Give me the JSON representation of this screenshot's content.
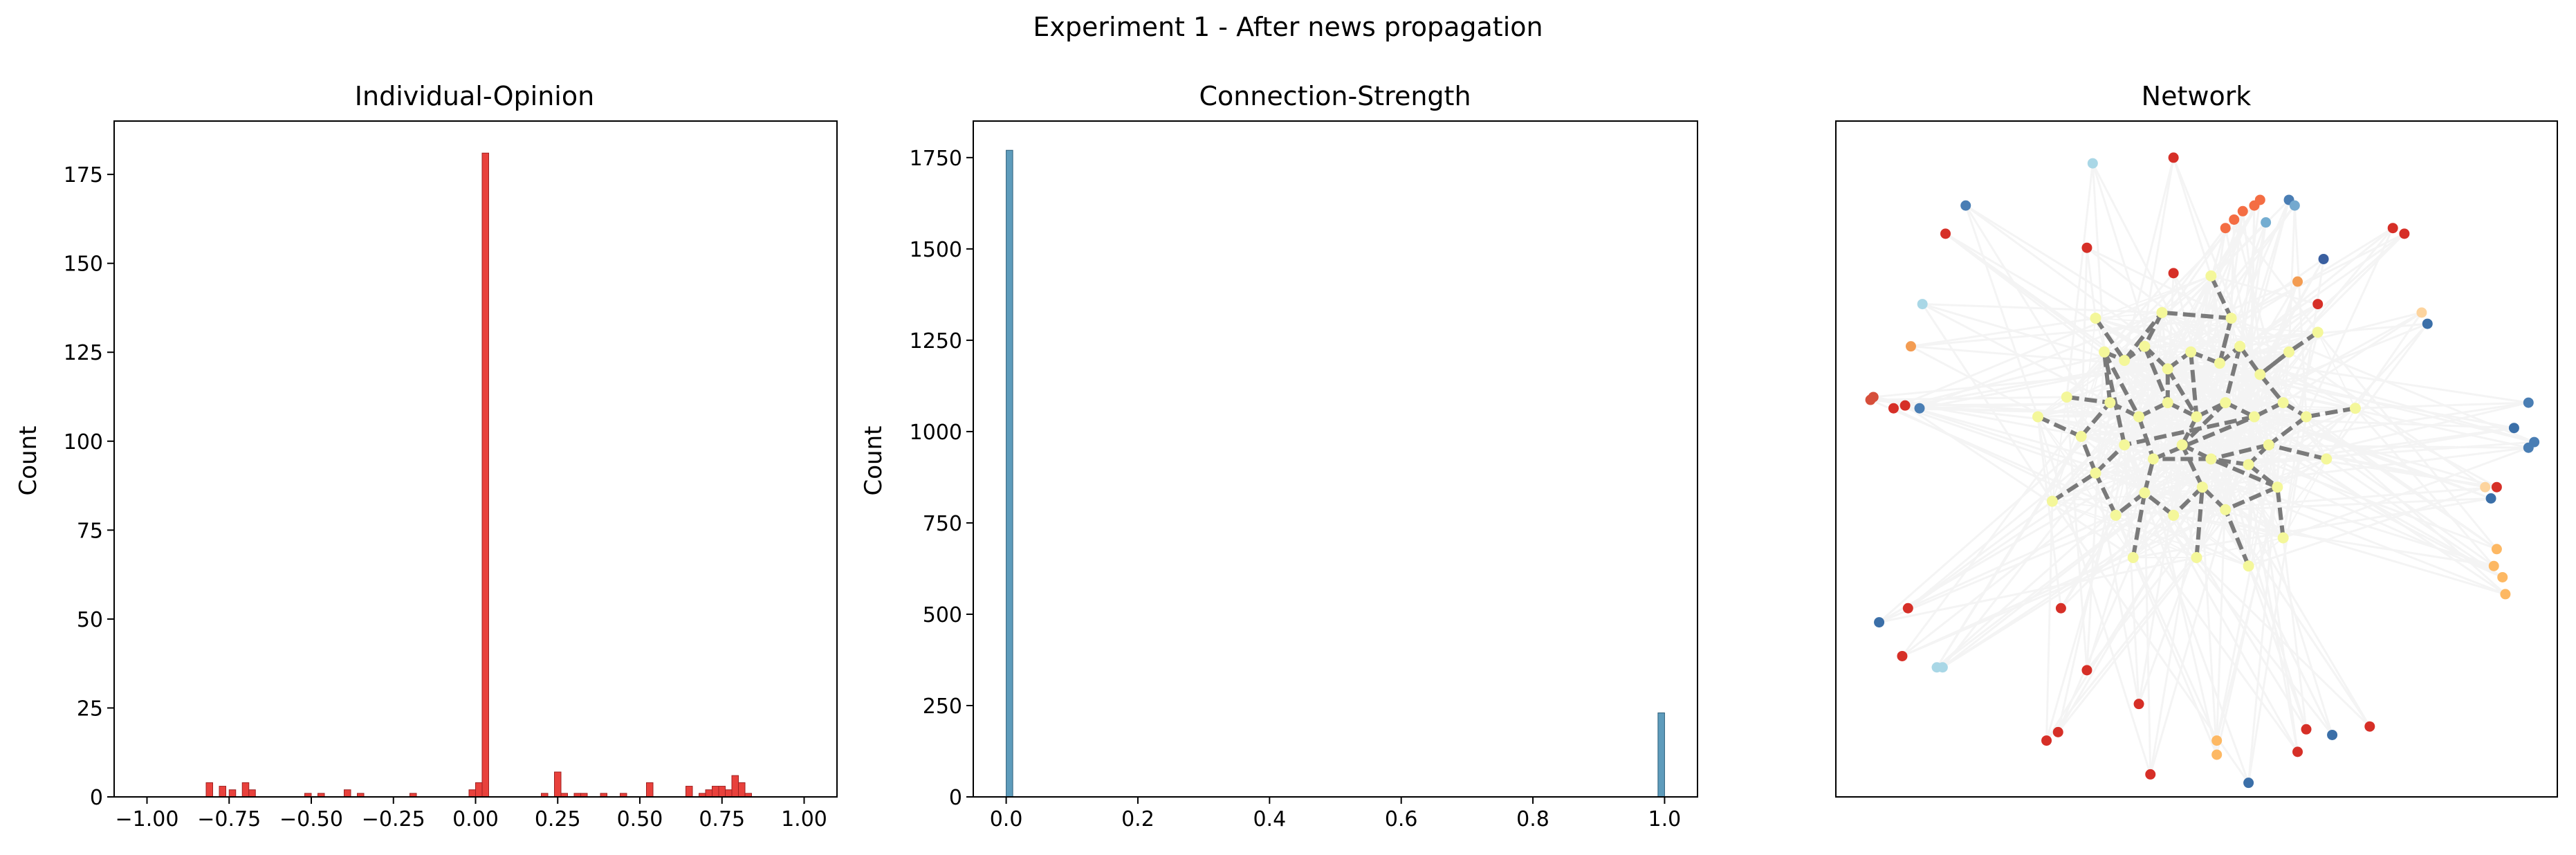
{
  "figure": {
    "title": "Experiment 1 - After news propagation"
  },
  "colors": {
    "opinion_bar": "#e8413c",
    "opinion_bar_edge": "#a02020",
    "strength_bar": "#5e9cbc",
    "strength_bar_edge": "#2d5f7a",
    "network_edge_bg": "#ececec",
    "network_core_edge": "#7a7a7a",
    "network_core_node": "#f4f79a"
  },
  "chart_data": [
    {
      "type": "bar",
      "title": "Individual-Opinion",
      "xlabel": "",
      "ylabel": "Count",
      "xlim": [
        -1.1,
        1.1
      ],
      "ylim": [
        0,
        190
      ],
      "bin_width": 0.02,
      "xticks": [
        -1.0,
        -0.75,
        -0.5,
        -0.25,
        0.0,
        0.25,
        0.5,
        0.75,
        1.0
      ],
      "xtick_labels": [
        "−1.00",
        "−0.75",
        "−0.50",
        "−0.25",
        "0.00",
        "0.25",
        "0.50",
        "0.75",
        "1.00"
      ],
      "yticks": [
        0,
        25,
        50,
        75,
        100,
        125,
        150,
        175
      ],
      "ytick_labels": [
        "0",
        "25",
        "50",
        "75",
        "100",
        "125",
        "150",
        "175"
      ],
      "bins": [
        {
          "x": -0.82,
          "count": 4
        },
        {
          "x": -0.78,
          "count": 3
        },
        {
          "x": -0.75,
          "count": 2
        },
        {
          "x": -0.71,
          "count": 4
        },
        {
          "x": -0.69,
          "count": 2
        },
        {
          "x": -0.52,
          "count": 1
        },
        {
          "x": -0.48,
          "count": 1
        },
        {
          "x": -0.4,
          "count": 2
        },
        {
          "x": -0.36,
          "count": 1
        },
        {
          "x": -0.2,
          "count": 1
        },
        {
          "x": -0.02,
          "count": 2
        },
        {
          "x": 0.0,
          "count": 4
        },
        {
          "x": 0.02,
          "count": 181
        },
        {
          "x": 0.2,
          "count": 1
        },
        {
          "x": 0.24,
          "count": 7
        },
        {
          "x": 0.26,
          "count": 1
        },
        {
          "x": 0.3,
          "count": 1
        },
        {
          "x": 0.32,
          "count": 1
        },
        {
          "x": 0.38,
          "count": 1
        },
        {
          "x": 0.44,
          "count": 1
        },
        {
          "x": 0.52,
          "count": 4
        },
        {
          "x": 0.64,
          "count": 3
        },
        {
          "x": 0.68,
          "count": 1
        },
        {
          "x": 0.7,
          "count": 2
        },
        {
          "x": 0.72,
          "count": 3
        },
        {
          "x": 0.74,
          "count": 3
        },
        {
          "x": 0.76,
          "count": 2
        },
        {
          "x": 0.78,
          "count": 6
        },
        {
          "x": 0.8,
          "count": 4
        },
        {
          "x": 0.82,
          "count": 1
        }
      ]
    },
    {
      "type": "bar",
      "title": "Connection-Strength",
      "xlabel": "",
      "ylabel": "Count",
      "xlim": [
        -0.05,
        1.05
      ],
      "ylim": [
        0,
        1850
      ],
      "bin_width": 0.01,
      "xticks": [
        0.0,
        0.2,
        0.4,
        0.6,
        0.8,
        1.0
      ],
      "xtick_labels": [
        "0.0",
        "0.2",
        "0.4",
        "0.6",
        "0.8",
        "1.0"
      ],
      "yticks": [
        0,
        250,
        500,
        750,
        1000,
        1250,
        1500,
        1750
      ],
      "ytick_labels": [
        "0",
        "250",
        "500",
        "750",
        "1000",
        "1250",
        "1500",
        "1750"
      ],
      "bins": [
        {
          "x": 0.0,
          "count": 1770
        },
        {
          "x": 0.99,
          "count": 230
        }
      ]
    },
    {
      "type": "scatter",
      "title": "Network",
      "axes_ticks": false,
      "core_nodes": [
        [
          -0.32,
          0.28
        ],
        [
          -0.25,
          0.25
        ],
        [
          -0.18,
          0.3
        ],
        [
          -0.1,
          0.22
        ],
        [
          -0.02,
          0.28
        ],
        [
          0.08,
          0.24
        ],
        [
          0.15,
          0.3
        ],
        [
          0.22,
          0.2
        ],
        [
          0.3,
          0.1
        ],
        [
          0.38,
          0.05
        ],
        [
          0.25,
          -0.05
        ],
        [
          0.18,
          -0.12
        ],
        [
          0.28,
          -0.2
        ],
        [
          0.1,
          -0.28
        ],
        [
          0.02,
          -0.2
        ],
        [
          -0.08,
          -0.3
        ],
        [
          -0.18,
          -0.22
        ],
        [
          -0.28,
          -0.3
        ],
        [
          -0.35,
          -0.15
        ],
        [
          -0.4,
          -0.02
        ],
        [
          -0.3,
          0.1
        ],
        [
          -0.2,
          0.05
        ],
        [
          -0.1,
          0.1
        ],
        [
          0.0,
          0.05
        ],
        [
          0.1,
          0.1
        ],
        [
          -0.05,
          -0.05
        ],
        [
          0.05,
          -0.1
        ],
        [
          -0.15,
          -0.1
        ],
        [
          0.2,
          0.05
        ],
        [
          -0.25,
          -0.05
        ],
        [
          0.12,
          0.4
        ],
        [
          -0.12,
          0.42
        ],
        [
          0.32,
          0.28
        ],
        [
          -0.45,
          0.12
        ],
        [
          0.45,
          -0.1
        ],
        [
          -0.22,
          -0.45
        ],
        [
          0.0,
          -0.45
        ],
        [
          0.3,
          -0.38
        ],
        [
          0.55,
          0.08
        ],
        [
          -0.55,
          0.05
        ],
        [
          0.05,
          0.55
        ],
        [
          -0.35,
          0.4
        ],
        [
          0.42,
          0.35
        ],
        [
          -0.5,
          -0.25
        ],
        [
          0.18,
          -0.48
        ]
      ],
      "core_edges": [
        [
          0,
          1
        ],
        [
          1,
          2
        ],
        [
          2,
          3
        ],
        [
          3,
          4
        ],
        [
          4,
          5
        ],
        [
          5,
          6
        ],
        [
          6,
          7
        ],
        [
          7,
          8
        ],
        [
          8,
          9
        ],
        [
          9,
          10
        ],
        [
          10,
          11
        ],
        [
          11,
          12
        ],
        [
          12,
          13
        ],
        [
          13,
          14
        ],
        [
          14,
          15
        ],
        [
          15,
          16
        ],
        [
          16,
          17
        ],
        [
          17,
          18
        ],
        [
          18,
          19
        ],
        [
          19,
          20
        ],
        [
          20,
          21
        ],
        [
          21,
          22
        ],
        [
          22,
          23
        ],
        [
          23,
          24
        ],
        [
          24,
          25
        ],
        [
          25,
          26
        ],
        [
          26,
          27
        ],
        [
          27,
          28
        ],
        [
          28,
          29
        ],
        [
          29,
          0
        ],
        [
          0,
          21
        ],
        [
          2,
          22
        ],
        [
          4,
          23
        ],
        [
          6,
          24
        ],
        [
          8,
          28
        ],
        [
          10,
          26
        ],
        [
          12,
          26
        ],
        [
          14,
          25
        ],
        [
          16,
          27
        ],
        [
          18,
          29
        ],
        [
          20,
          0
        ],
        [
          3,
          23
        ],
        [
          30,
          5
        ],
        [
          31,
          2
        ],
        [
          32,
          7
        ],
        [
          33,
          20
        ],
        [
          34,
          10
        ],
        [
          35,
          16
        ],
        [
          36,
          14
        ],
        [
          37,
          12
        ],
        [
          38,
          9
        ],
        [
          39,
          19
        ],
        [
          40,
          30
        ],
        [
          41,
          1
        ],
        [
          42,
          32
        ],
        [
          43,
          18
        ],
        [
          44,
          13
        ],
        [
          30,
          31
        ],
        [
          23,
          25
        ],
        [
          21,
          27
        ],
        [
          24,
          28
        ],
        [
          11,
          26
        ],
        [
          22,
          3
        ],
        [
          1,
          31
        ],
        [
          5,
          30
        ],
        [
          7,
          32
        ]
      ],
      "outer_nodes": [
        {
          "x": -0.36,
          "y": 0.95,
          "color": "#a9d7e6"
        },
        {
          "x": -0.08,
          "y": 0.97,
          "color": "#d62f27"
        },
        {
          "x": 0.32,
          "y": 0.82,
          "color": "#4a7eb4"
        },
        {
          "x": 0.34,
          "y": 0.8,
          "color": "#74a9cf"
        },
        {
          "x": -0.8,
          "y": 0.8,
          "color": "#4a7eb4"
        },
        {
          "x": 0.1,
          "y": 0.72,
          "color": "#f46d43"
        },
        {
          "x": 0.13,
          "y": 0.75,
          "color": "#f46d43"
        },
        {
          "x": 0.16,
          "y": 0.78,
          "color": "#f46d43"
        },
        {
          "x": 0.2,
          "y": 0.8,
          "color": "#f46d43"
        },
        {
          "x": 0.22,
          "y": 0.82,
          "color": "#f46d43"
        },
        {
          "x": 0.24,
          "y": 0.74,
          "color": "#74add1"
        },
        {
          "x": 0.68,
          "y": 0.72,
          "color": "#d62f27"
        },
        {
          "x": 0.72,
          "y": 0.7,
          "color": "#d62f27"
        },
        {
          "x": -0.87,
          "y": 0.7,
          "color": "#d62f27"
        },
        {
          "x": -0.38,
          "y": 0.65,
          "color": "#d62f27"
        },
        {
          "x": 0.44,
          "y": 0.61,
          "color": "#3a5fa0"
        },
        {
          "x": -0.08,
          "y": 0.56,
          "color": "#d62f27"
        },
        {
          "x": 0.42,
          "y": 0.45,
          "color": "#d62f27"
        },
        {
          "x": 0.35,
          "y": 0.53,
          "color": "#f39c52"
        },
        {
          "x": -0.95,
          "y": 0.45,
          "color": "#a9d7e6"
        },
        {
          "x": 0.78,
          "y": 0.42,
          "color": "#fdd49e"
        },
        {
          "x": 0.8,
          "y": 0.38,
          "color": "#3b6fa8"
        },
        {
          "x": -0.99,
          "y": 0.3,
          "color": "#f39c52"
        },
        {
          "x": -1.12,
          "y": 0.12,
          "color": "#d64e3a"
        },
        {
          "x": -1.13,
          "y": 0.11,
          "color": "#d64e3a"
        },
        {
          "x": -1.05,
          "y": 0.08,
          "color": "#d62f27"
        },
        {
          "x": -1.01,
          "y": 0.09,
          "color": "#d62f27"
        },
        {
          "x": -0.96,
          "y": 0.08,
          "color": "#4a7eb4"
        },
        {
          "x": 1.15,
          "y": 0.1,
          "color": "#4a7eb4"
        },
        {
          "x": 1.1,
          "y": 0.01,
          "color": "#3b6fa8"
        },
        {
          "x": 1.17,
          "y": -0.04,
          "color": "#4a7eb4"
        },
        {
          "x": 1.15,
          "y": -0.06,
          "color": "#4a7eb4"
        },
        {
          "x": 1.0,
          "y": -0.2,
          "color": "#fdd49e"
        },
        {
          "x": 1.04,
          "y": -0.2,
          "color": "#d62f27"
        },
        {
          "x": 1.02,
          "y": -0.24,
          "color": "#3b6fa8"
        },
        {
          "x": 1.04,
          "y": -0.42,
          "color": "#fdb863"
        },
        {
          "x": 1.03,
          "y": -0.48,
          "color": "#fdb863"
        },
        {
          "x": 1.06,
          "y": -0.52,
          "color": "#fdb863"
        },
        {
          "x": 1.07,
          "y": -0.58,
          "color": "#fdb863"
        },
        {
          "x": -1.1,
          "y": -0.68,
          "color": "#3b6fa8"
        },
        {
          "x": -1.0,
          "y": -0.63,
          "color": "#d62f27"
        },
        {
          "x": -0.47,
          "y": -0.63,
          "color": "#d62f27"
        },
        {
          "x": -1.02,
          "y": -0.8,
          "color": "#d62f27"
        },
        {
          "x": -0.9,
          "y": -0.84,
          "color": "#a9d7e6"
        },
        {
          "x": -0.88,
          "y": -0.84,
          "color": "#a9d7e6"
        },
        {
          "x": -0.38,
          "y": -0.85,
          "color": "#d62f27"
        },
        {
          "x": -0.2,
          "y": -0.97,
          "color": "#d62f27"
        },
        {
          "x": -0.48,
          "y": -1.07,
          "color": "#d62f27"
        },
        {
          "x": -0.52,
          "y": -1.1,
          "color": "#d62f27"
        },
        {
          "x": -0.16,
          "y": -1.22,
          "color": "#d62f27"
        },
        {
          "x": 0.07,
          "y": -1.15,
          "color": "#fdb863"
        },
        {
          "x": 0.07,
          "y": -1.1,
          "color": "#fdb863"
        },
        {
          "x": 0.38,
          "y": -1.06,
          "color": "#d62f27"
        },
        {
          "x": 0.47,
          "y": -1.08,
          "color": "#3b6fa8"
        },
        {
          "x": 0.35,
          "y": -1.14,
          "color": "#d62f27"
        },
        {
          "x": 0.6,
          "y": -1.05,
          "color": "#d62f27"
        },
        {
          "x": 0.18,
          "y": -1.25,
          "color": "#3b6fa8"
        }
      ],
      "xlim": [
        -1.25,
        1.25
      ],
      "ylim": [
        -1.3,
        1.1
      ]
    }
  ]
}
